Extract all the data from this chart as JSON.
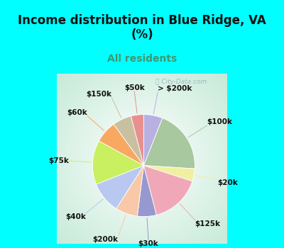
{
  "title": "Income distribution in Blue Ridge, VA\n(%)",
  "subtitle": "All residents",
  "title_color": "#111111",
  "subtitle_color": "#3d9970",
  "bg_cyan": "#00ffff",
  "watermark": "City-Data.com",
  "slices": [
    {
      "label": "> $200k",
      "value": 6,
      "color": "#b8b0e0"
    },
    {
      "label": "$100k",
      "value": 20,
      "color": "#a8c8a0"
    },
    {
      "label": "$20k",
      "value": 4,
      "color": "#f0f0a0"
    },
    {
      "label": "$125k",
      "value": 16,
      "color": "#f0a8b8"
    },
    {
      "label": "$30k",
      "value": 6,
      "color": "#9898d0"
    },
    {
      "label": "$200k",
      "value": 7,
      "color": "#f8c8a8"
    },
    {
      "label": "$40k",
      "value": 10,
      "color": "#b8c8f0"
    },
    {
      "label": "$75k",
      "value": 14,
      "color": "#c8f060"
    },
    {
      "label": "$60k",
      "value": 7,
      "color": "#f8a860"
    },
    {
      "label": "$150k",
      "value": 6,
      "color": "#c8c0a0"
    },
    {
      "label": "$50k",
      "value": 4,
      "color": "#e89090"
    }
  ],
  "label_fontsize": 7.5,
  "label_color": "#111111",
  "title_fontsize": 12,
  "subtitle_fontsize": 10
}
